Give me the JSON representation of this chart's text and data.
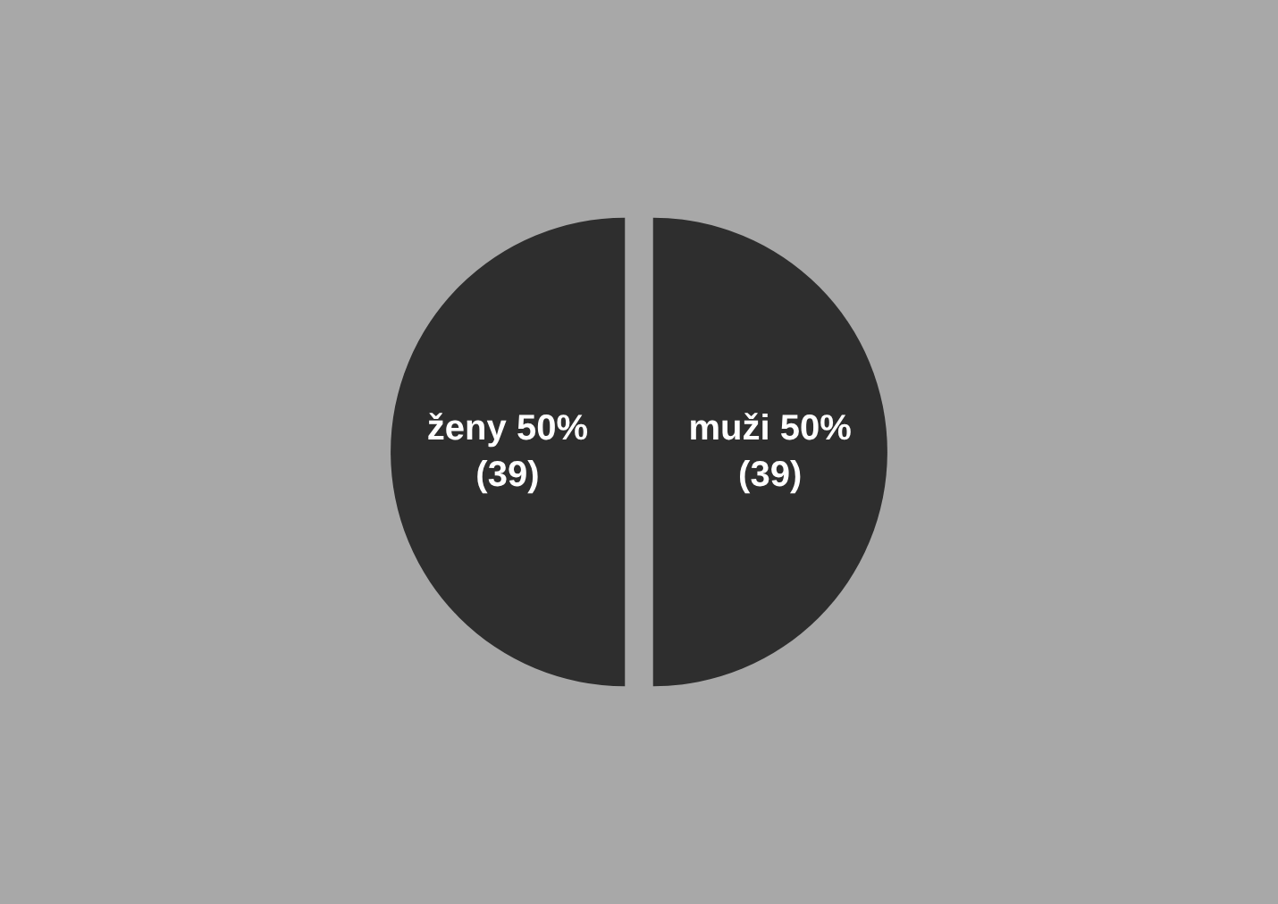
{
  "chart_data": {
    "type": "pie",
    "categories": [
      "ženy",
      "muži"
    ],
    "values": [
      39,
      39
    ],
    "colors": [
      "#2e2e2e",
      "#2e2e2e"
    ],
    "value_labels": [
      "50%\n(39)",
      "50%\n(39)"
    ],
    "legend": false
  }
}
